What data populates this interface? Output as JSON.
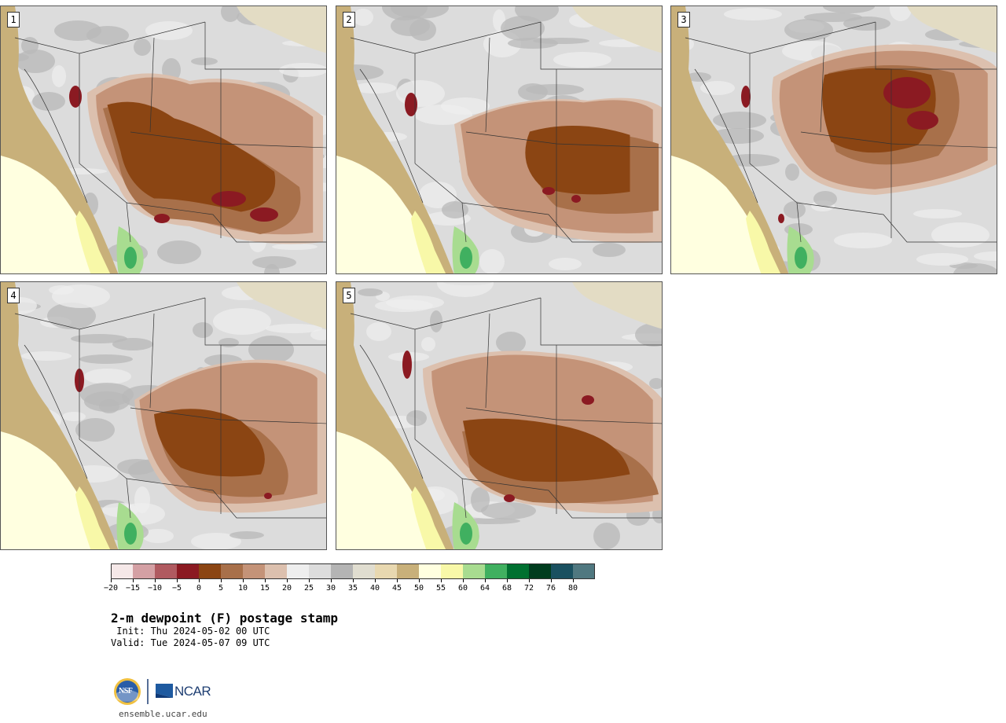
{
  "title": "2-m dewpoint (F) postage stamp",
  "init_line": " Init: Thu 2024-05-02 00 UTC",
  "valid_line": "Valid: Tue 2024-05-07 09 UTC",
  "panels": [
    {
      "label": "1",
      "dry_level": 0.9
    },
    {
      "label": "2",
      "dry_level": 0.6
    },
    {
      "label": "3",
      "dry_level": 0.8
    },
    {
      "label": "4",
      "dry_level": 0.6
    },
    {
      "label": "5",
      "dry_level": 0.75
    }
  ],
  "colorbar": {
    "colors": [
      "#f5e8e8",
      "#d4a0a4",
      "#b05a60",
      "#8b1a22",
      "#8b4513",
      "#a8704a",
      "#c49378",
      "#dcc0ae",
      "#eeeeee",
      "#dcdcdc",
      "#b4b4b4",
      "#e0ddd0",
      "#e8d8b0",
      "#c8b07a",
      "#ffffe0",
      "#f8f8a8",
      "#a8dc90",
      "#40b060",
      "#007030",
      "#003c1e",
      "#1a5060",
      "#507880"
    ],
    "tick_labels": [
      "−20",
      "−15",
      "−10",
      "−5",
      "0",
      "5",
      "10",
      "15",
      "20",
      "25",
      "30",
      "35",
      "40",
      "45",
      "50",
      "55",
      "60",
      "64",
      "68",
      "72",
      "76",
      "80"
    ]
  },
  "logos": {
    "nsf": "NSF",
    "ncar": "NCAR"
  },
  "site": "ensemble.ucar.edu"
}
